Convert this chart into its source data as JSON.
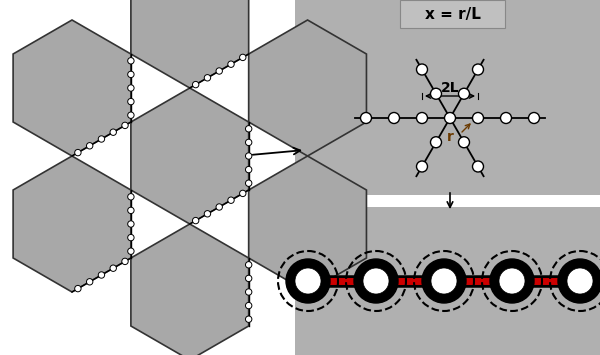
{
  "bg_color": "#ffffff",
  "hex_fill": "#a8a8a8",
  "hex_edge": "#333333",
  "node_face": "#ffffff",
  "node_edge": "#000000",
  "red_color": "#cc0000",
  "panel_fill": "#b0b0b0",
  "label_box_fill": "#c0c0c0",
  "label_x_eq": "x = r/L",
  "label_2L": "2L",
  "label_r": "r",
  "fig_width": 6.0,
  "fig_height": 3.55
}
